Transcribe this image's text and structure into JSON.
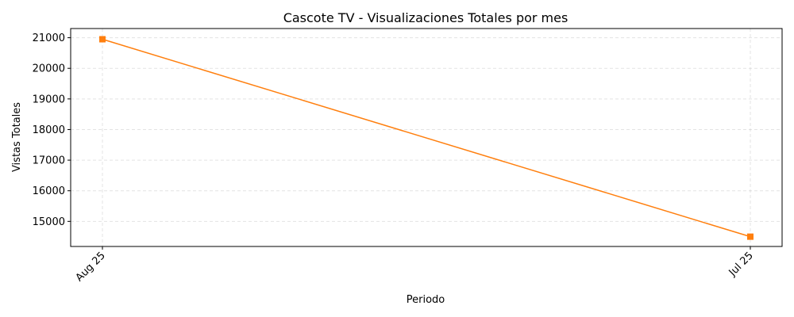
{
  "chart_data": {
    "type": "line",
    "title": "Cascote TV - Visualizaciones Totales por mes",
    "xlabel": "Periodo",
    "ylabel": "Vistas Totales",
    "categories": [
      "Aug 25",
      "Jul 25"
    ],
    "series": [
      {
        "values": [
          20950,
          14500
        ],
        "color": "#ff7f0e",
        "marker": "square"
      }
    ],
    "yticks": [
      15000,
      16000,
      17000,
      18000,
      19000,
      20000,
      21000
    ],
    "ylim": [
      14180,
      21300
    ],
    "grid": true,
    "x_tick_rotation": 45
  }
}
